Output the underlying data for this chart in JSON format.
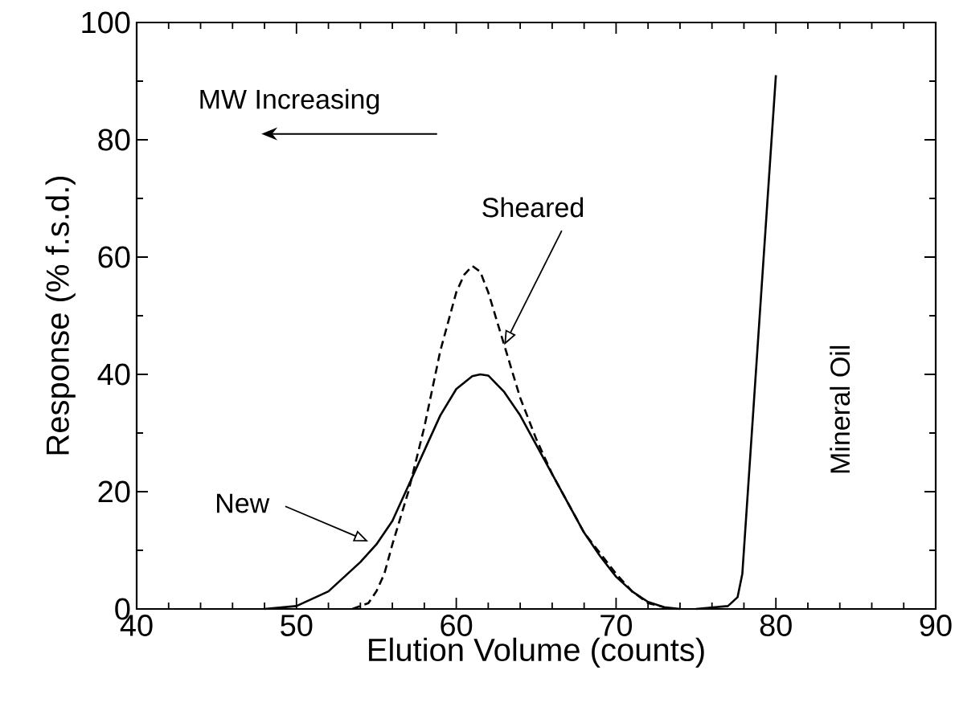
{
  "chart_data": {
    "type": "line",
    "xlabel": "Elution Volume (counts)",
    "ylabel": "Response (% f.s.d.)",
    "xlim": [
      40,
      90
    ],
    "ylim": [
      0,
      100
    ],
    "xticks": [
      40,
      50,
      60,
      70,
      80,
      90
    ],
    "yticks": [
      0,
      20,
      40,
      60,
      80,
      100
    ],
    "grid": false,
    "legend": false,
    "marker": "none",
    "annotations": [
      "MW Increasing",
      {
        "text": "New",
        "x": 54.5,
        "y": 11.5
      },
      {
        "text": "Sheared",
        "x": 63,
        "y": 45
      }
    ],
    "series": [
      {
        "color": "#000000",
        "line_style": "solid",
        "x": [
          48,
          50,
          52,
          54,
          55,
          56,
          57,
          58,
          59,
          60,
          61,
          61.5,
          62,
          63,
          64,
          65,
          66,
          67,
          68,
          69,
          70,
          71,
          72,
          73,
          74
        ],
        "values": [
          0,
          0.5,
          3,
          8,
          11,
          15,
          21,
          27,
          33,
          37.5,
          39.7,
          40,
          39.8,
          37,
          33,
          28,
          23,
          18,
          13,
          9,
          5.5,
          3,
          1.2,
          0.3,
          0
        ]
      },
      {
        "color": "#000000",
        "line_style": "dashed",
        "x": [
          53.5,
          54.5,
          55,
          55.5,
          56,
          57,
          58,
          59,
          60,
          60.5,
          61,
          61.5,
          62,
          63,
          64,
          65,
          66,
          67,
          68,
          69,
          70,
          71,
          72,
          73
        ],
        "values": [
          0,
          1,
          3,
          6,
          11,
          20,
          31,
          44,
          54,
          57,
          58.5,
          57.5,
          54,
          45,
          36,
          29,
          23,
          18,
          13,
          9.5,
          6,
          3,
          1,
          0.3
        ]
      },
      {
        "name": "Mineral Oil",
        "color": "#000000",
        "line_style": "solid",
        "x": [
          75,
          77,
          77.6,
          77.9,
          80
        ],
        "values": [
          0,
          0.5,
          2,
          6,
          91
        ]
      }
    ]
  }
}
